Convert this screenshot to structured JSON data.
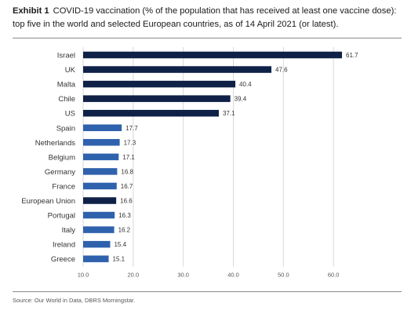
{
  "header": {
    "exhibit_label": "Exhibit 1",
    "title_line1": "COVID-19 vaccination (% of the population that has received at least one vaccine dose):",
    "title_line2": "top five in the world and selected European countries, as of 14 April 2021 (or latest)."
  },
  "source_note": "Source: Our World in Data, DBRS Morningstar.",
  "colors": {
    "top_five": "#0f2147",
    "europe": "#2f62ad",
    "grid": "#d9d9d9"
  },
  "chart_data": {
    "type": "bar",
    "orientation": "horizontal",
    "categories": [
      "Israel",
      "UK",
      "Malta",
      "Chile",
      "US",
      "Spain",
      "Netherlands",
      "Belgium",
      "Germany",
      "France",
      "European Union",
      "Portugal",
      "Italy",
      "Ireland",
      "Greece"
    ],
    "values": [
      61.7,
      47.6,
      40.4,
      39.4,
      37.1,
      17.7,
      17.3,
      17.1,
      16.8,
      16.7,
      16.6,
      16.3,
      16.2,
      15.4,
      15.1
    ],
    "value_labels": [
      "61.7",
      "47.6",
      "40.4",
      "39.4",
      "37.1",
      "17.7",
      "17.3",
      "17.1",
      "16.8",
      "16.7",
      "16.6",
      "16.3",
      "16.2",
      "15.4",
      "15.1"
    ],
    "bar_groups": [
      "top_five",
      "top_five",
      "top_five",
      "top_five",
      "top_five",
      "europe",
      "europe",
      "europe",
      "europe",
      "europe",
      "top_five",
      "europe",
      "europe",
      "europe",
      "europe"
    ],
    "xlim": [
      10.0,
      70.0
    ],
    "x_ticks": [
      10.0,
      20.0,
      30.0,
      40.0,
      50.0,
      60.0
    ],
    "x_tick_labels": [
      "10.0",
      "20.0",
      "30.0",
      "40.0",
      "50.0",
      "60.0"
    ],
    "grid": true,
    "legend": "none"
  }
}
